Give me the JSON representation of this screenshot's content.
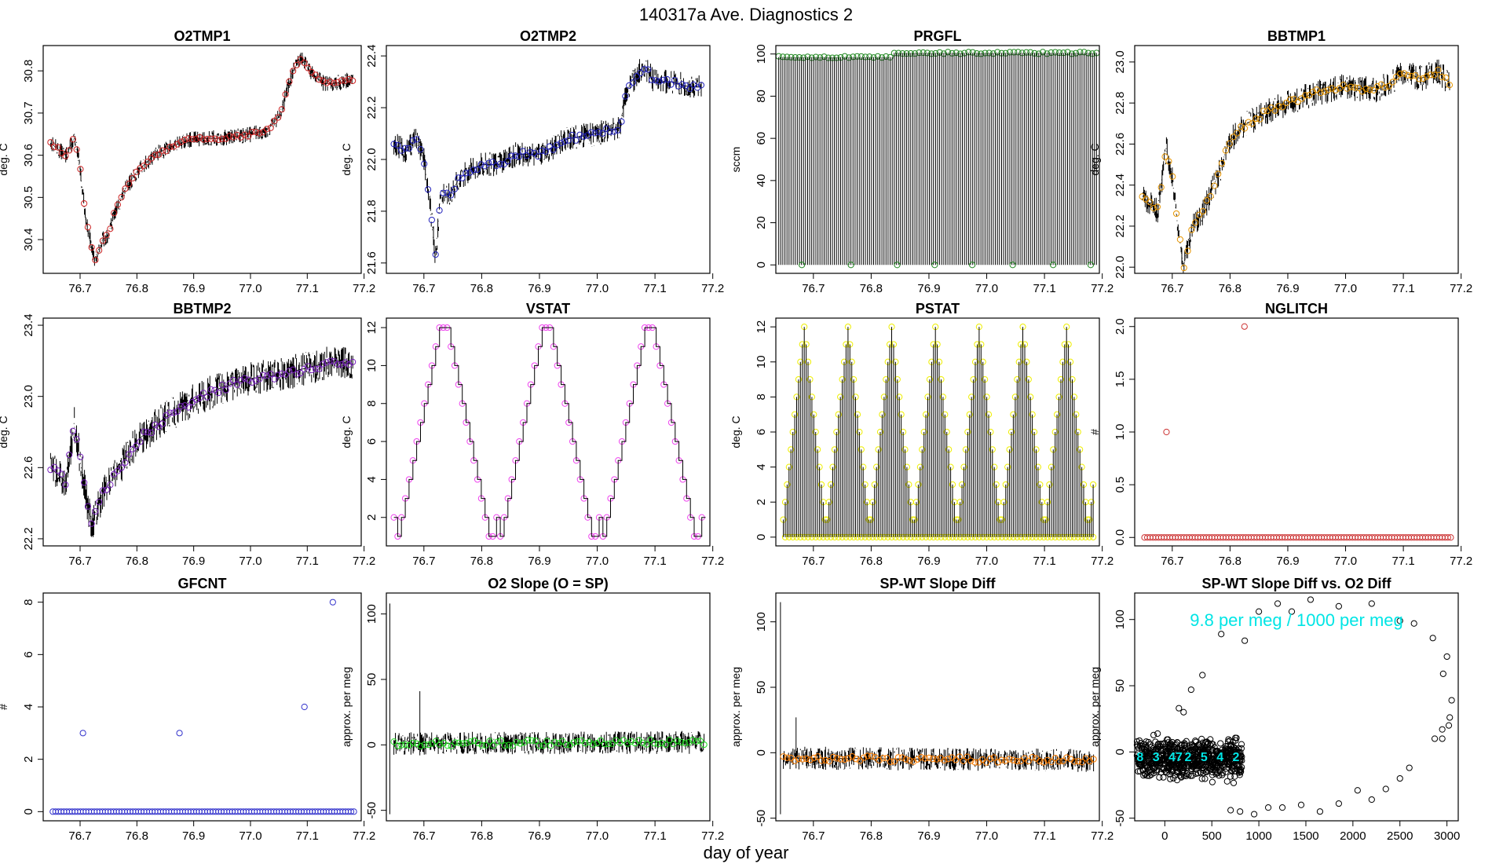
{
  "figure": {
    "title": "140317a   Ave. Diagnostics 2",
    "xlabel": "day of year"
  },
  "chart_data": [
    {
      "type": "line",
      "name": "panel-o2tmp1",
      "title": "O2TMP1",
      "ylabel": "deg. C",
      "xlim": [
        76.635,
        77.195
      ],
      "ylim": [
        30.32,
        30.86
      ],
      "xticks": [
        76.7,
        76.8,
        76.9,
        77.0,
        77.1,
        77.2
      ],
      "yticks": [
        30.4,
        30.5,
        30.6,
        30.7,
        30.8
      ],
      "style": "noisy",
      "noise": 0.012,
      "marker_color": "#cc2222",
      "series": {
        "x": [
          76.648,
          76.665,
          76.675,
          76.69,
          76.7,
          76.71,
          76.725,
          76.74,
          76.75,
          76.76,
          76.78,
          76.8,
          76.83,
          76.86,
          76.9,
          76.95,
          77.0,
          77.03,
          77.05,
          77.075,
          77.09,
          77.11,
          77.13,
          77.15,
          77.18
        ],
        "y": [
          30.63,
          30.61,
          30.6,
          30.64,
          30.57,
          30.45,
          30.35,
          30.4,
          30.41,
          30.46,
          30.52,
          30.56,
          30.6,
          30.62,
          30.64,
          30.64,
          30.65,
          30.66,
          30.69,
          30.8,
          30.83,
          30.79,
          30.77,
          30.77,
          30.78
        ]
      }
    },
    {
      "type": "line",
      "name": "panel-o2tmp2",
      "title": "O2TMP2",
      "ylabel": "deg. C",
      "xlim": [
        76.635,
        77.195
      ],
      "ylim": [
        21.56,
        22.44
      ],
      "xticks": [
        76.7,
        76.8,
        76.9,
        77.0,
        77.1,
        77.2
      ],
      "yticks": [
        21.6,
        21.8,
        22.0,
        22.2,
        22.4
      ],
      "style": "noisy",
      "noise": 0.03,
      "marker_color": "#2222bb",
      "series": {
        "x": [
          76.648,
          76.67,
          76.685,
          76.7,
          76.71,
          76.72,
          76.73,
          76.745,
          76.76,
          76.78,
          76.8,
          76.83,
          76.86,
          76.9,
          76.95,
          77.0,
          77.04,
          77.05,
          77.06,
          77.08,
          77.1,
          77.13,
          77.16,
          77.18
        ],
        "y": [
          22.06,
          22.03,
          22.08,
          22.0,
          21.85,
          21.62,
          21.88,
          21.86,
          21.92,
          21.96,
          21.98,
          21.98,
          22.02,
          22.02,
          22.08,
          22.1,
          22.12,
          22.26,
          22.3,
          22.36,
          22.3,
          22.3,
          22.28,
          22.28
        ]
      }
    },
    {
      "type": "line",
      "name": "panel-prgfl",
      "title": "PRGFL",
      "ylabel": "sccm",
      "xlim": [
        76.635,
        77.195
      ],
      "ylim": [
        -4,
        104
      ],
      "xticks": [
        76.7,
        76.8,
        76.9,
        77.0,
        77.1,
        77.2
      ],
      "yticks": [
        0,
        20,
        40,
        60,
        80,
        100
      ],
      "style": "spikes",
      "marker_color": "#228822",
      "series": {
        "x": [
          76.64,
          76.84,
          77.19
        ],
        "y": [
          98.5,
          100.5,
          100.5
        ]
      },
      "zero_points": [
        76.68,
        76.765,
        76.845,
        76.91,
        76.975,
        77.045,
        77.115,
        77.18
      ]
    },
    {
      "type": "line",
      "name": "panel-bbtmp1",
      "title": "BBTMP1",
      "ylabel": "deg. C",
      "xlim": [
        76.635,
        77.195
      ],
      "ylim": [
        21.97,
        23.08
      ],
      "xticks": [
        76.7,
        76.8,
        76.9,
        77.0,
        77.1,
        77.2
      ],
      "yticks": [
        22.0,
        22.2,
        22.4,
        22.6,
        22.8,
        23.0
      ],
      "style": "noisy",
      "noise": 0.04,
      "marker_color": "#e69500",
      "series": {
        "x": [
          76.648,
          76.665,
          76.675,
          76.69,
          76.7,
          76.71,
          76.72,
          76.735,
          76.75,
          76.78,
          76.8,
          76.83,
          76.86,
          76.9,
          76.95,
          77.0,
          77.05,
          77.08,
          77.1,
          77.13,
          77.16,
          77.18
        ],
        "y": [
          22.35,
          22.3,
          22.28,
          22.58,
          22.45,
          22.2,
          22.0,
          22.2,
          22.25,
          22.45,
          22.62,
          22.7,
          22.75,
          22.8,
          22.85,
          22.88,
          22.86,
          22.9,
          22.95,
          22.92,
          22.95,
          22.9
        ]
      }
    },
    {
      "type": "line",
      "name": "panel-bbtmp2",
      "title": "BBTMP2",
      "ylabel": "deg. C",
      "xlim": [
        76.635,
        77.195
      ],
      "ylim": [
        22.16,
        23.44
      ],
      "xticks": [
        76.7,
        76.8,
        76.9,
        77.0,
        77.1,
        77.2
      ],
      "yticks": [
        22.2,
        22.6,
        23.0,
        23.4
      ],
      "style": "noisy",
      "noise": 0.06,
      "marker_color": "#7722bb",
      "series": {
        "x": [
          76.648,
          76.665,
          76.675,
          76.69,
          76.7,
          76.71,
          76.72,
          76.74,
          76.76,
          76.8,
          76.85,
          76.9,
          76.95,
          77.0,
          77.05,
          77.1,
          77.15,
          77.18
        ],
        "y": [
          22.6,
          22.55,
          22.52,
          22.85,
          22.65,
          22.45,
          22.28,
          22.45,
          22.55,
          22.75,
          22.88,
          22.98,
          23.05,
          23.1,
          23.12,
          23.16,
          23.2,
          23.18
        ]
      }
    },
    {
      "type": "line",
      "name": "panel-vstat",
      "title": "VSTAT",
      "ylabel": "deg. C",
      "xlim": [
        76.635,
        77.195
      ],
      "ylim": [
        0.5,
        12.5
      ],
      "xticks": [
        76.7,
        76.8,
        76.9,
        77.0,
        77.1,
        77.2
      ],
      "yticks": [
        2,
        4,
        6,
        8,
        10,
        12
      ],
      "style": "stair",
      "marker_color": "#ee44ee",
      "start": 76.648,
      "step": 0.00658,
      "count": 82,
      "cycle": [
        2,
        1,
        2,
        3,
        4,
        5,
        6,
        7,
        8,
        9,
        10,
        11,
        12,
        12,
        12,
        11,
        10,
        9,
        8,
        7,
        6,
        5,
        4,
        3,
        2,
        1,
        1
      ]
    },
    {
      "type": "bar",
      "name": "panel-pstat",
      "title": "PSTAT",
      "ylabel": "deg. C",
      "xlim": [
        76.635,
        77.195
      ],
      "ylim": [
        -0.5,
        12.5
      ],
      "xticks": [
        76.7,
        76.8,
        76.9,
        77.0,
        77.1,
        77.2
      ],
      "yticks": [
        0,
        2,
        4,
        6,
        8,
        10,
        12
      ],
      "style": "zigzag",
      "marker_color": "#eeee00",
      "start": 76.648,
      "step": 0.00329,
      "count": 164,
      "cycle": [
        1,
        2,
        3,
        4,
        5,
        6,
        7,
        8,
        9,
        10,
        11,
        12,
        11,
        10,
        9,
        8,
        7,
        6,
        5,
        4,
        3,
        2,
        1,
        1,
        2,
        3,
        4,
        5,
        6,
        7,
        8,
        9,
        10,
        11,
        12,
        11,
        10,
        9,
        8,
        7,
        6,
        5,
        4,
        3,
        2,
        1
      ]
    },
    {
      "type": "scatter",
      "name": "panel-nglitch",
      "title": "NGLITCH",
      "ylabel": "#",
      "xlim": [
        76.635,
        77.195
      ],
      "ylim": [
        -0.08,
        2.08
      ],
      "xticks": [
        76.7,
        76.8,
        76.9,
        77.0,
        77.1,
        77.2
      ],
      "yticks": [
        0.0,
        0.5,
        1.0,
        1.5,
        2.0
      ],
      "style": "points",
      "marker_color": "#cc3333",
      "zero_range": [
        76.652,
        77.182
      ],
      "zero_count": 110,
      "points": [
        {
          "x": 76.69,
          "y": 1
        },
        {
          "x": 76.825,
          "y": 2
        }
      ]
    },
    {
      "type": "scatter",
      "name": "panel-gfcnt",
      "title": "GFCNT",
      "ylabel": "#",
      "xlim": [
        76.635,
        77.195
      ],
      "ylim": [
        -0.35,
        8.35
      ],
      "xticks": [
        76.7,
        76.8,
        76.9,
        77.0,
        77.1,
        77.2
      ],
      "yticks": [
        0,
        2,
        4,
        6,
        8
      ],
      "style": "points",
      "marker_color": "#3333cc",
      "zero_range": [
        76.652,
        77.182
      ],
      "zero_count": 110,
      "points": [
        {
          "x": 76.705,
          "y": 3
        },
        {
          "x": 76.875,
          "y": 3
        },
        {
          "x": 77.095,
          "y": 4
        },
        {
          "x": 77.145,
          "y": 8
        }
      ]
    },
    {
      "type": "line",
      "name": "panel-o2-slope",
      "title": "O2 Slope (O = SP)",
      "ylabel": "approx. per meg",
      "xlim": [
        76.635,
        77.195
      ],
      "ylim": [
        -58,
        116
      ],
      "xticks": [
        76.7,
        76.8,
        76.9,
        77.0,
        77.1,
        77.2
      ],
      "yticks": [
        -50,
        0,
        50,
        100
      ],
      "style": "noisy",
      "noise": 5.5,
      "marker_color": "#22dd22",
      "series": {
        "x": [
          76.648,
          77.185
        ],
        "y": [
          1,
          2
        ]
      },
      "spikes": [
        {
          "x": 76.641,
          "lo": -53,
          "hi": 108
        },
        {
          "x": 76.693,
          "lo": -8,
          "hi": 41
        }
      ]
    },
    {
      "type": "line",
      "name": "panel-sp-wt-slope-diff",
      "title": "SP-WT Slope Diff",
      "ylabel": "approx. per meg",
      "xlim": [
        76.635,
        77.195
      ],
      "ylim": [
        -52,
        122
      ],
      "xticks": [
        76.7,
        76.8,
        76.9,
        77.0,
        77.1,
        77.2
      ],
      "yticks": [
        -50,
        0,
        50,
        100
      ],
      "style": "noisy",
      "noise": 5.5,
      "marker_color": "#ff7f00",
      "series": {
        "x": [
          76.648,
          77.185
        ],
        "y": [
          -4,
          -6
        ]
      },
      "spikes": [
        {
          "x": 76.643,
          "lo": -47,
          "hi": 115
        },
        {
          "x": 76.67,
          "lo": -12,
          "hi": 27
        }
      ]
    },
    {
      "type": "scatter",
      "name": "panel-sp-wt-vs-o2",
      "title": "SP-WT Slope Diff vs. O2 Diff",
      "ylabel": "approx. per meg",
      "xlim": [
        -320,
        3120
      ],
      "ylim": [
        -52,
        120
      ],
      "xticks": [
        0,
        500,
        1000,
        1500,
        2000,
        2500,
        3000
      ],
      "yticks": [
        -50,
        0,
        50,
        100
      ],
      "style": "cloud",
      "marker_color": "#00e5e5",
      "annotation": "9.8 per meg / 1000 per meg",
      "cloud": {
        "x_range": [
          -300,
          820
        ],
        "y_center": -5,
        "y_spread": 10
      },
      "cyan_labels": [
        "8",
        "3",
        "47",
        "2",
        "5",
        "4",
        "2"
      ],
      "points": [
        {
          "x": 1000,
          "y": 106
        },
        {
          "x": 1200,
          "y": 112
        },
        {
          "x": 1350,
          "y": 106
        },
        {
          "x": 1550,
          "y": 115
        },
        {
          "x": 1850,
          "y": 110
        },
        {
          "x": 2200,
          "y": 112
        },
        {
          "x": 2500,
          "y": 99
        },
        {
          "x": 2650,
          "y": 97
        },
        {
          "x": 2850,
          "y": 86
        },
        {
          "x": 3000,
          "y": 72
        },
        {
          "x": 2960,
          "y": 59
        },
        {
          "x": 3050,
          "y": 39
        },
        {
          "x": 3030,
          "y": 26
        },
        {
          "x": 2950,
          "y": 17
        },
        {
          "x": 3020,
          "y": 20
        },
        {
          "x": 2870,
          "y": 10
        },
        {
          "x": 2950,
          "y": 10
        },
        {
          "x": 2600,
          "y": -12
        },
        {
          "x": 2500,
          "y": -20
        },
        {
          "x": 2350,
          "y": -28
        },
        {
          "x": 2200,
          "y": -36
        },
        {
          "x": 2050,
          "y": -29
        },
        {
          "x": 1850,
          "y": -39
        },
        {
          "x": 1650,
          "y": -45
        },
        {
          "x": 1450,
          "y": -40
        },
        {
          "x": 1250,
          "y": -42
        },
        {
          "x": 1100,
          "y": -42
        },
        {
          "x": 950,
          "y": -47
        },
        {
          "x": 800,
          "y": -45
        },
        {
          "x": 700,
          "y": -44
        },
        {
          "x": 400,
          "y": 58
        },
        {
          "x": 280,
          "y": 47
        },
        {
          "x": 600,
          "y": 89
        },
        {
          "x": 850,
          "y": 84
        },
        {
          "x": 150,
          "y": 33
        },
        {
          "x": 200,
          "y": 30
        }
      ]
    }
  ]
}
